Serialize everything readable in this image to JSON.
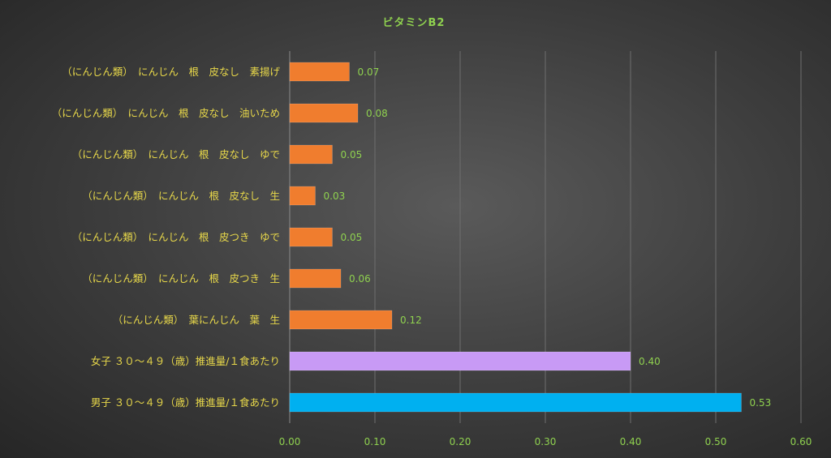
{
  "chart_data": {
    "type": "bar",
    "orientation": "horizontal",
    "title": "ビタミンB2",
    "categories": [
      "（にんじん類）　にんじん　根　皮なし　素揚げ",
      "（にんじん類）　にんじん　根　皮なし　油いため",
      "（にんじん類）　にんじん　根　皮なし　ゆで",
      "（にんじん類）　にんじん　根　皮なし　生",
      "（にんじん類）　にんじん　根　皮つき　ゆで",
      "（にんじん類）　にんじん　根　皮つき　生",
      "（にんじん類）　葉にんじん　葉　生",
      "女子 ３０～４９（歳）推進量/１食あたり",
      "男子 ３０～４９（歳）推進量/１食あたり"
    ],
    "values": [
      0.07,
      0.08,
      0.05,
      0.03,
      0.05,
      0.06,
      0.12,
      0.4,
      0.53
    ],
    "value_labels": [
      "0.07",
      "0.08",
      "0.05",
      "0.03",
      "0.05",
      "0.06",
      "0.12",
      "0.40",
      "0.53"
    ],
    "bar_colors": [
      "#f07d2e",
      "#f07d2e",
      "#f07d2e",
      "#f07d2e",
      "#f07d2e",
      "#f07d2e",
      "#f07d2e",
      "#c89af5",
      "#00b0f0"
    ],
    "xlim": [
      0,
      0.6
    ],
    "xticks": [
      "0.00",
      "0.10",
      "0.20",
      "0.30",
      "0.40",
      "0.50",
      "0.60"
    ],
    "grid": true,
    "legend": "none"
  }
}
